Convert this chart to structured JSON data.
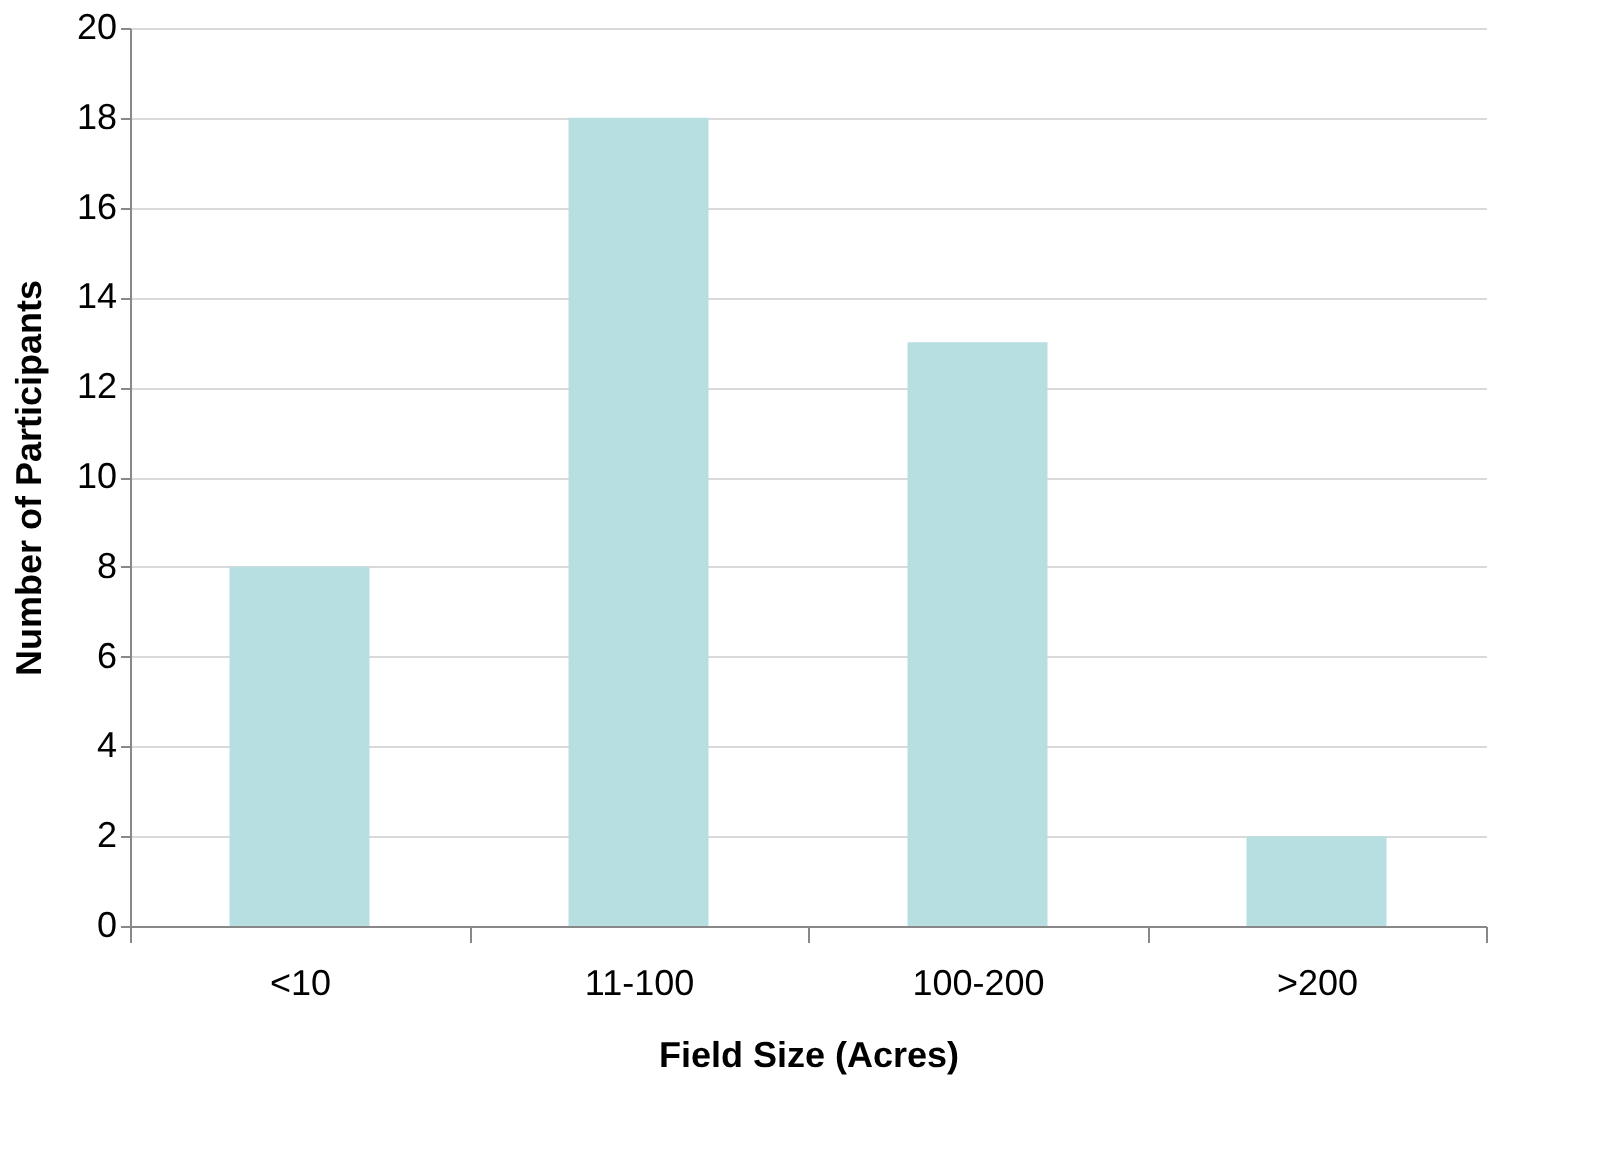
{
  "chart_data": {
    "type": "bar",
    "xlabel": "Field Size (Acres)",
    "ylabel": "Number of Participants",
    "categories": [
      "<10",
      "11-100",
      "100-200",
      ">200"
    ],
    "values": [
      8,
      18,
      13,
      2
    ],
    "color": "#b7dfe2",
    "ylim": [
      0,
      20
    ],
    "yticks": [
      0,
      2,
      4,
      6,
      8,
      10,
      12,
      14,
      16,
      18,
      20
    ],
    "grid": "y"
  }
}
